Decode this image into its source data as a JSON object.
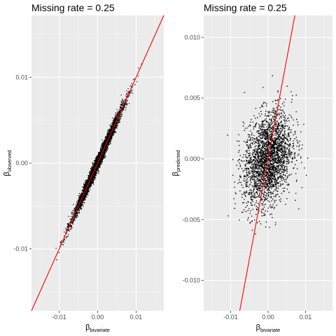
{
  "colors": {
    "panel_background": "#ebebeb",
    "grid_major": "#ffffff",
    "grid_minor": "#f5f5f5",
    "points": "#000000",
    "fit_line": "#ff0000",
    "tick_text": "#4d4d4d"
  },
  "chart_data": [
    {
      "type": "scatter",
      "title": "Missing rate = 0.25",
      "xlabel": {
        "base": "β",
        "sub": "bivariate"
      },
      "ylabel": {
        "base": "β",
        "sub": "observed"
      },
      "xlim": [
        -0.0172,
        0.0172
      ],
      "ylim": [
        -0.0172,
        0.0172
      ],
      "xticks": [
        -0.01,
        0.0,
        0.01
      ],
      "xtick_labels": [
        "-0.01",
        "0.00",
        "0.01"
      ],
      "yticks": [
        -0.01,
        0.0,
        0.01
      ],
      "ytick_labels": [
        "-0.01",
        "0.00",
        "0.01"
      ],
      "grid": true,
      "scatter_distribution": {
        "x_sd": 0.0032,
        "relation_to_x": 1.0,
        "noise_sd": 0.00042,
        "x_range": [
          -0.0135,
          0.0135
        ]
      },
      "fit_line": {
        "slope": 1.0,
        "intercept": 0.0
      }
    },
    {
      "type": "scatter",
      "title": "Missing rate = 0.25",
      "xlabel": {
        "base": "β",
        "sub": "bivariate"
      },
      "ylabel": {
        "base": "β",
        "sub": "predicted"
      },
      "xlim": [
        -0.0172,
        0.0172
      ],
      "ylim": [
        -0.0125,
        0.0118
      ],
      "xticks": [
        -0.01,
        0.0,
        0.01
      ],
      "xtick_labels": [
        "-0.01",
        "0.00",
        "0.01"
      ],
      "yticks": [
        -0.01,
        -0.005,
        0.0,
        0.005,
        0.01
      ],
      "ytick_labels": [
        "-0.010",
        "-0.005",
        "0.000",
        "0.005",
        "0.010"
      ],
      "grid": true,
      "scatter_distribution": {
        "x_sd": 0.0032,
        "relation_to_x": 0.18,
        "noise_sd": 0.00185,
        "x_range": [
          -0.012,
          0.0115
        ]
      },
      "fit_line": {
        "slope": 1.65,
        "intercept": 0.0
      }
    }
  ]
}
